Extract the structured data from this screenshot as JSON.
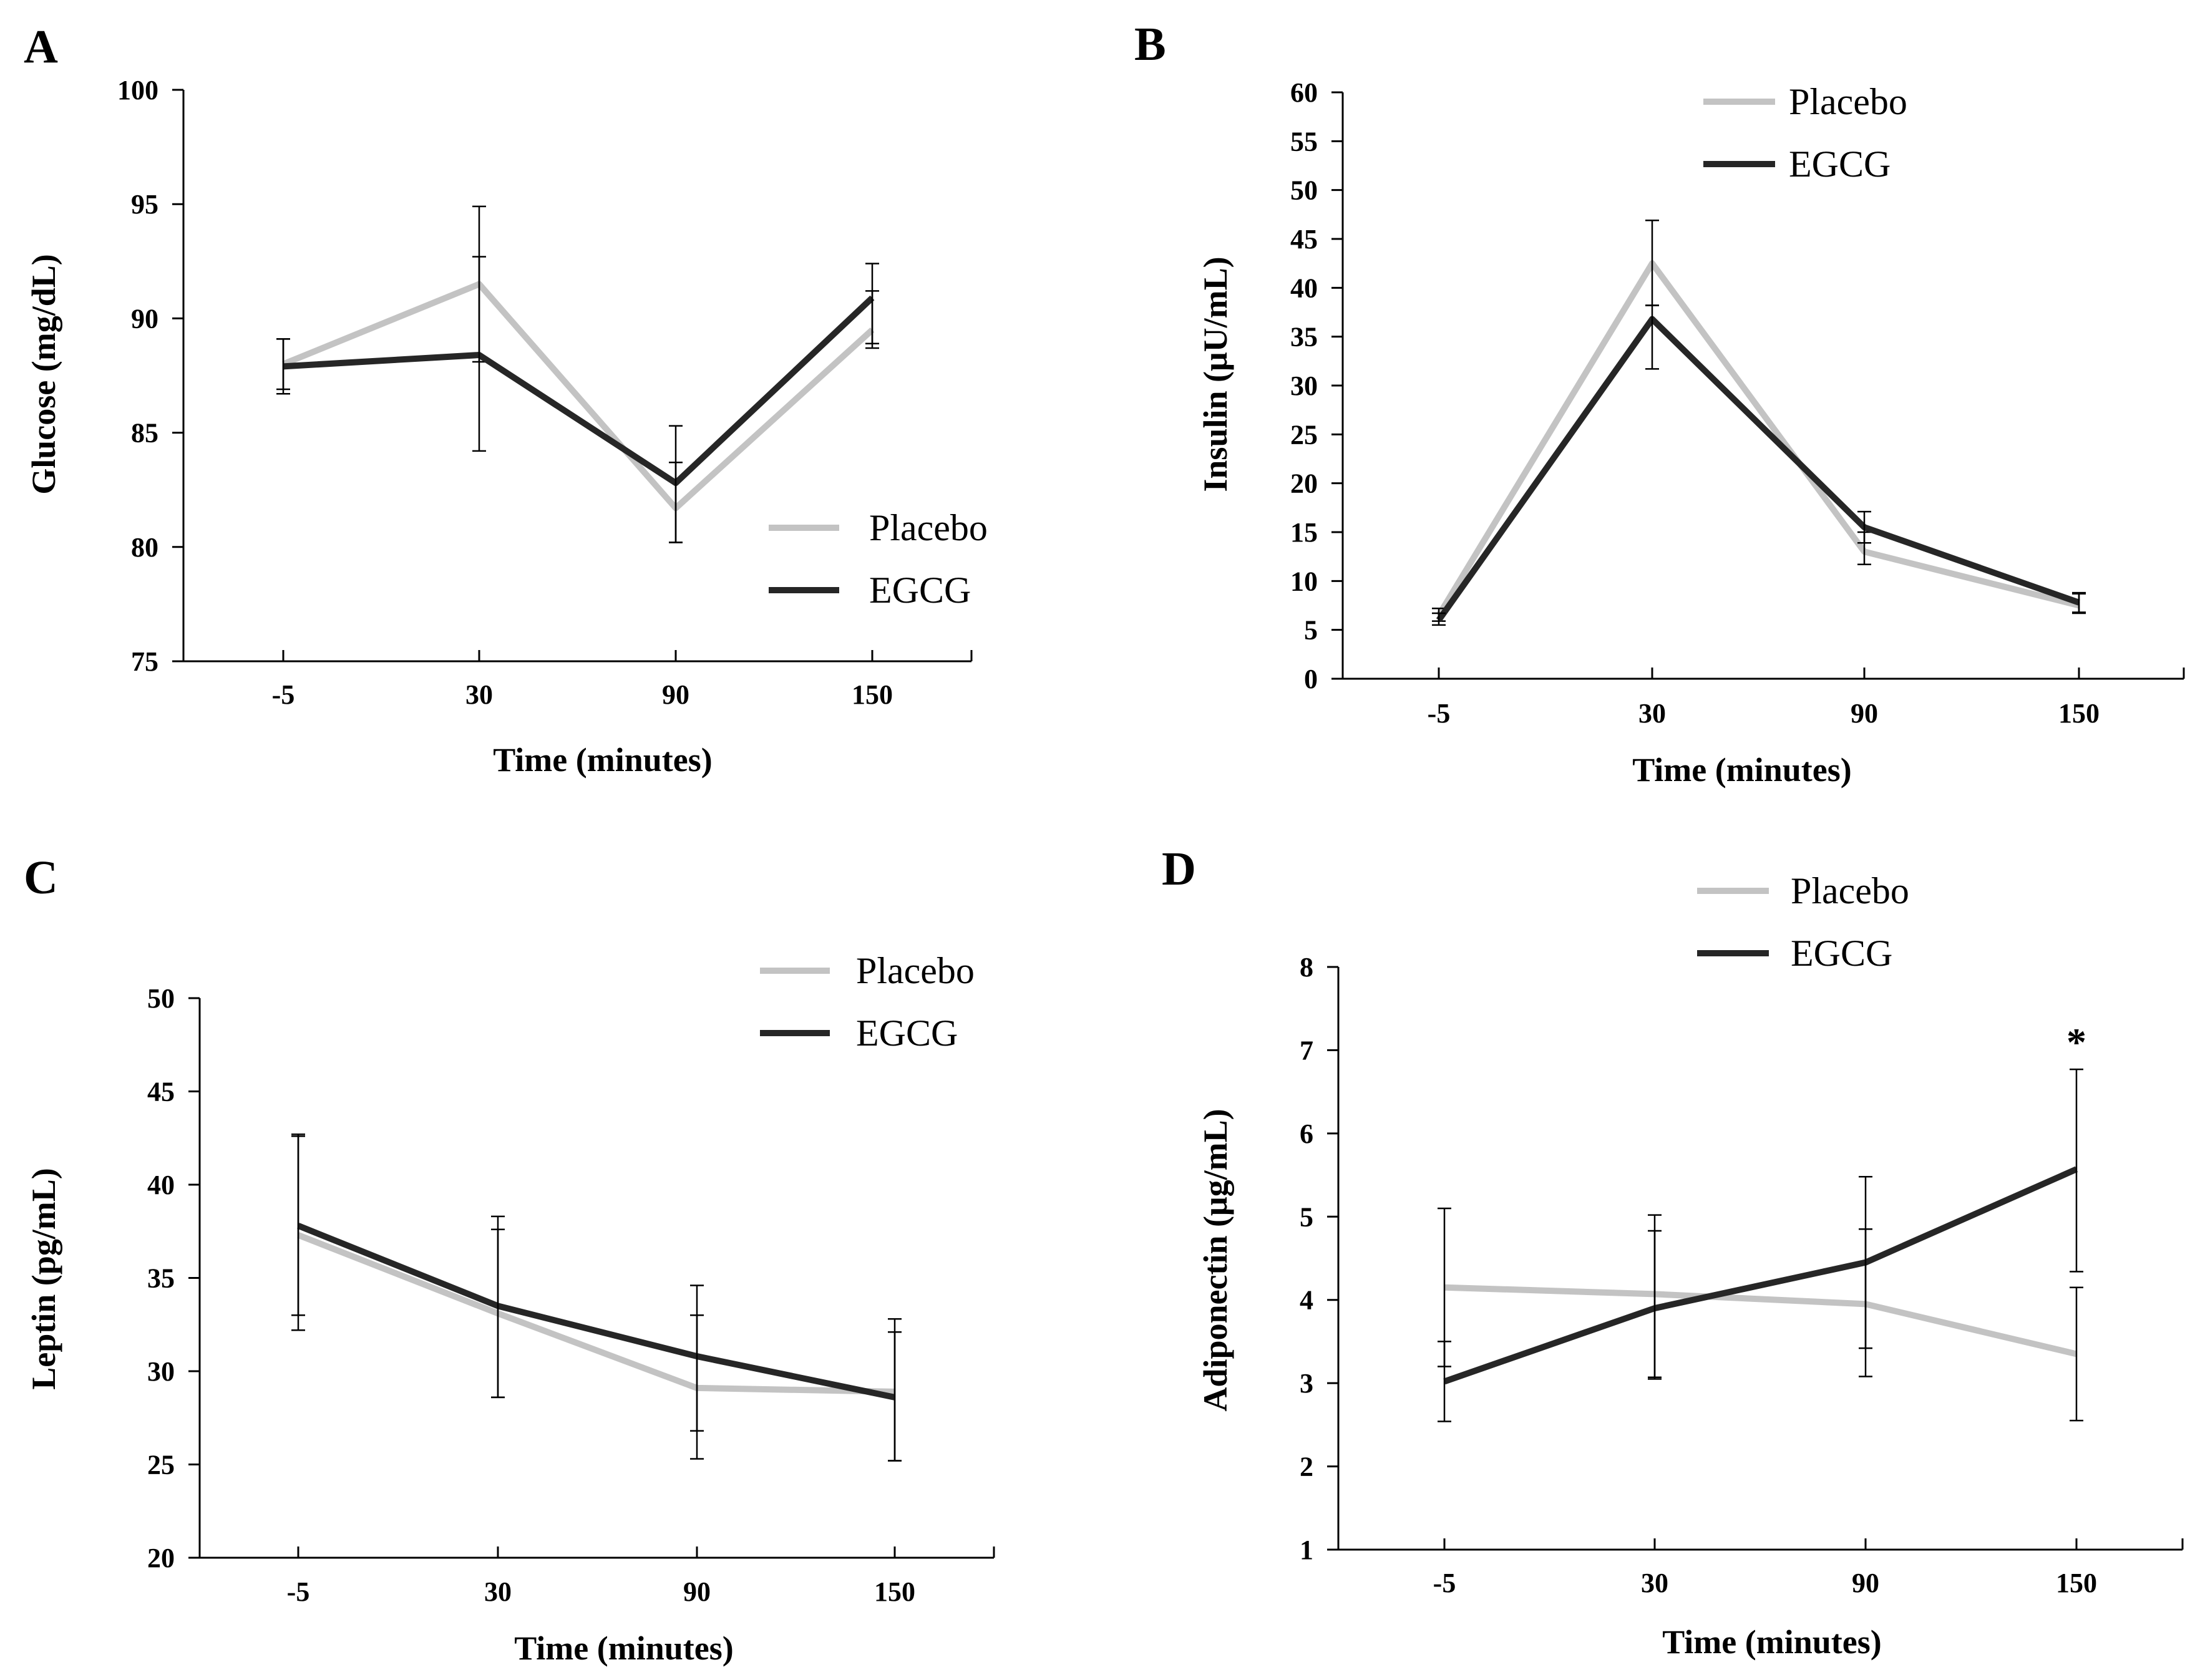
{
  "colors": {
    "placebo": "#c3c3c3",
    "egcg": "#262626",
    "axis": "#000000",
    "error_bar": "#000000"
  },
  "chart_data": [
    {
      "panel": "A",
      "type": "line",
      "xlabel": "Time (minutes)",
      "ylabel": "Glucose (mg/dL)",
      "categories": [
        "-5",
        "30",
        "90",
        "150"
      ],
      "ylim": [
        75,
        100
      ],
      "yticks": [
        75,
        80,
        85,
        90,
        95,
        100
      ],
      "legend_position": "bottom-right",
      "series": [
        {
          "name": "Placebo",
          "values": [
            88.0,
            91.5,
            81.7,
            89.5
          ],
          "err_upper": [
            1.1,
            3.4,
            2.0,
            1.7
          ],
          "err_lower": [
            1.1,
            3.4,
            1.5,
            0.8
          ]
        },
        {
          "name": "EGCG",
          "values": [
            87.9,
            88.4,
            82.8,
            90.9
          ],
          "err_upper": [
            1.2,
            4.3,
            2.5,
            1.5
          ],
          "err_lower": [
            1.2,
            4.2,
            2.6,
            2.0
          ]
        }
      ],
      "annotations": []
    },
    {
      "panel": "B",
      "type": "line",
      "xlabel": "Time (minutes)",
      "ylabel": "Insulin (μU/mL)",
      "categories": [
        "-5",
        "30",
        "90",
        "150"
      ],
      "ylim": [
        0,
        60
      ],
      "yticks": [
        0,
        5,
        10,
        15,
        20,
        25,
        30,
        35,
        40,
        45,
        50,
        55,
        60
      ],
      "legend_position": "top-center",
      "series": [
        {
          "name": "Placebo",
          "values": [
            6.5,
            42.5,
            13.0,
            7.5
          ],
          "err_upper": [
            0.7,
            4.4,
            2.0,
            1.2
          ],
          "err_lower": [
            0.6,
            4.3,
            1.3,
            0.8
          ]
        },
        {
          "name": "EGCG",
          "values": [
            6.0,
            36.8,
            15.5,
            7.8
          ],
          "err_upper": [
            0.7,
            1.4,
            1.6,
            1.0
          ],
          "err_lower": [
            0.5,
            5.1,
            1.6,
            1.0
          ]
        }
      ],
      "annotations": []
    },
    {
      "panel": "C",
      "type": "line",
      "xlabel": "Time (minutes)",
      "ylabel": "Leptin (pg/mL)",
      "categories": [
        "-5",
        "30",
        "90",
        "150"
      ],
      "ylim": [
        20,
        50
      ],
      "yticks": [
        20,
        25,
        30,
        35,
        40,
        45,
        50
      ],
      "legend_position": "top-right",
      "series": [
        {
          "name": "Placebo",
          "values": [
            37.3,
            33.1,
            29.1,
            28.9
          ],
          "err_upper": [
            5.3,
            4.5,
            3.9,
            3.2
          ],
          "err_lower": [
            5.1,
            4.5,
            3.8,
            3.7
          ]
        },
        {
          "name": "EGCG",
          "values": [
            37.8,
            33.5,
            30.8,
            28.6
          ],
          "err_upper": [
            4.9,
            4.8,
            3.8,
            4.2
          ],
          "err_lower": [
            4.8,
            4.9,
            4.0,
            3.4
          ]
        }
      ],
      "annotations": []
    },
    {
      "panel": "D",
      "type": "line",
      "xlabel": "Time (minutes)",
      "ylabel": "Adiponectin (μg/mL)",
      "categories": [
        "-5",
        "30",
        "90",
        "150"
      ],
      "ylim": [
        1,
        8
      ],
      "yticks": [
        1,
        2,
        3,
        4,
        5,
        6,
        7,
        8
      ],
      "legend_position": "top-center",
      "series": [
        {
          "name": "Placebo",
          "values": [
            4.15,
            4.07,
            3.95,
            3.35
          ],
          "err_upper": [
            0.95,
            0.95,
            0.9,
            0.8
          ],
          "err_lower": [
            0.95,
            1.0,
            0.87,
            0.8
          ]
        },
        {
          "name": "EGCG",
          "values": [
            3.02,
            3.9,
            4.45,
            5.57
          ],
          "err_upper": [
            0.48,
            0.93,
            1.03,
            1.2
          ],
          "err_lower": [
            0.48,
            0.85,
            1.03,
            1.23
          ]
        }
      ],
      "annotations": [
        {
          "text": "*",
          "category": "150"
        }
      ]
    }
  ]
}
